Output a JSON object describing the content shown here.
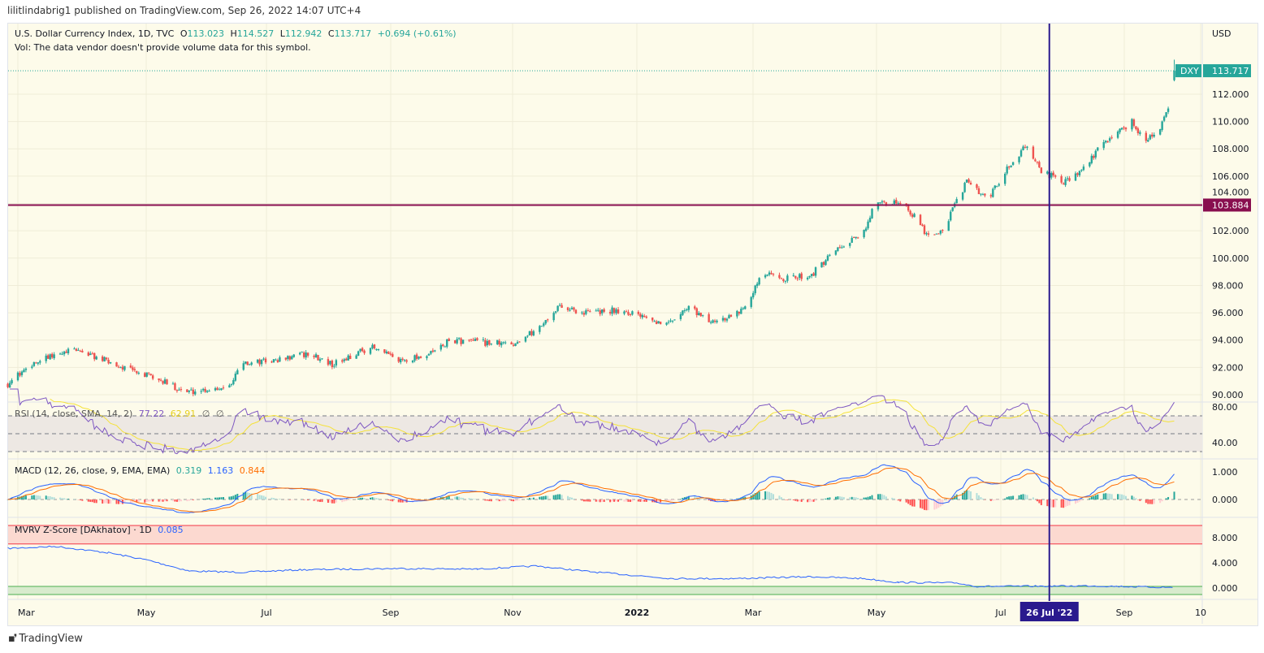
{
  "header": {
    "published": "lilitlindabrig1 published on TradingView.com, Sep 26, 2022 14:07 UTC+4"
  },
  "legend": {
    "symbol": "U.S. Dollar Currency Index, 1D, TVC",
    "o_label": "O",
    "o": "113.023",
    "h_label": "H",
    "h": "114.527",
    "l_label": "L",
    "l": "112.942",
    "c_label": "C",
    "c": "113.717",
    "change": "+0.694 (+0.61%)",
    "vol_note": "Vol: The data vendor doesn't provide volume data for this symbol."
  },
  "rsi_legend": {
    "title": "RSI (14, close, SMA, 14, 2)",
    "rsi": "77.22",
    "sma": "62.91",
    "u1": "∅",
    "u2": "∅"
  },
  "macd_legend": {
    "title": "MACD (12, 26, close, 9, EMA, EMA)",
    "hist": "0.319",
    "macd": "1.163",
    "signal": "0.844"
  },
  "mvrv_legend": {
    "title": "MVRV Z-Score [DAkhatov] · 1D",
    "value": "0.085"
  },
  "price_axis": {
    "currency": "USD",
    "ticks": [
      "90.000",
      "92.000",
      "94.000",
      "96.000",
      "98.000",
      "100.000",
      "102.000",
      "104.000",
      "106.000",
      "108.000",
      "110.000",
      "112.000"
    ],
    "last_symbol": "DXY",
    "last_price": "113.717",
    "hline_price": "103.884"
  },
  "rsi_axis": {
    "ticks": [
      "80.00",
      "40.00"
    ]
  },
  "macd_axis": {
    "ticks": [
      "1.000",
      "0.000"
    ]
  },
  "mvrv_axis": {
    "ticks": [
      "8.000",
      "4.000",
      "0.000"
    ]
  },
  "time_axis": {
    "ticks": [
      "Mar",
      "May",
      "Jul",
      "Sep",
      "Nov",
      "2022",
      "Mar",
      "May",
      "Jul",
      "Sep",
      "10"
    ],
    "cursor_label": "26 Jul '22"
  },
  "footer": {
    "brand": "TradingView"
  },
  "colors": {
    "up": "#26a69a",
    "down": "#ef5350",
    "hline": "#880e4f",
    "cursor": "#2a1a8e",
    "rsi": "#7e57c2",
    "rsi_sma": "#f5e23a",
    "macd": "#2962ff",
    "signal": "#ff6d00",
    "mvrv": "#2962ff"
  },
  "chart_data": [
    {
      "type": "candlestick",
      "title": "U.S. Dollar Currency Index, 1D, TVC",
      "ylim": [
        89.5,
        114.8
      ],
      "grid": true,
      "hline": 103.884,
      "cursor_date": "2022-07-26",
      "approx_close_path": [
        [
          "2021-02-24",
          90.8
        ],
        [
          "2021-03-08",
          92.3
        ],
        [
          "2021-03-30",
          93.3
        ],
        [
          "2021-04-22",
          92.0
        ],
        [
          "2021-05-08",
          91.2
        ],
        [
          "2021-05-24",
          90.2
        ],
        [
          "2021-06-13",
          90.6
        ],
        [
          "2021-06-21",
          92.3
        ],
        [
          "2021-07-07",
          92.5
        ],
        [
          "2021-07-23",
          93.0
        ],
        [
          "2021-08-04",
          92.2
        ],
        [
          "2021-08-23",
          93.5
        ],
        [
          "2021-09-06",
          92.5
        ],
        [
          "2021-09-22",
          93.0
        ],
        [
          "2021-10-02",
          94.0
        ],
        [
          "2021-10-20",
          93.8
        ],
        [
          "2021-11-01",
          93.7
        ],
        [
          "2021-11-13",
          94.7
        ],
        [
          "2021-11-25",
          96.5
        ],
        [
          "2021-12-07",
          96.0
        ],
        [
          "2021-12-24",
          96.2
        ],
        [
          "2022-01-09",
          95.8
        ],
        [
          "2022-01-15",
          95.0
        ],
        [
          "2022-01-29",
          96.5
        ],
        [
          "2022-02-06",
          95.3
        ],
        [
          "2022-02-22",
          96.0
        ],
        [
          "2022-03-06",
          98.8
        ],
        [
          "2022-03-18",
          98.5
        ],
        [
          "2022-03-30",
          98.8
        ],
        [
          "2022-04-11",
          100.5
        ],
        [
          "2022-04-24",
          101.7
        ],
        [
          "2022-04-30",
          103.8
        ],
        [
          "2022-05-14",
          104.2
        ],
        [
          "2022-05-26",
          101.8
        ],
        [
          "2022-06-03",
          102.0
        ],
        [
          "2022-06-11",
          104.5
        ],
        [
          "2022-06-15",
          105.6
        ],
        [
          "2022-06-25",
          104.2
        ],
        [
          "2022-07-05",
          106.5
        ],
        [
          "2022-07-15",
          108.3
        ],
        [
          "2022-07-21",
          106.5
        ],
        [
          "2022-08-02",
          105.5
        ],
        [
          "2022-08-10",
          106.2
        ],
        [
          "2022-08-23",
          108.6
        ],
        [
          "2022-09-05",
          110.0
        ],
        [
          "2022-09-12",
          108.5
        ],
        [
          "2022-09-20",
          109.8
        ],
        [
          "2022-09-24",
          111.2
        ],
        [
          "2022-09-26",
          113.717
        ]
      ]
    },
    {
      "type": "line",
      "title": "RSI (14, close, SMA, 14, 2)",
      "ylim": [
        26,
        82
      ],
      "bands": [
        70,
        50,
        30
      ],
      "last": {
        "rsi": 77.22,
        "sma": 62.91
      }
    },
    {
      "type": "line",
      "title": "MACD (12, 26, close, 9, EMA, EMA)",
      "ylim": [
        -0.6,
        1.45
      ],
      "last": {
        "histogram": 0.319,
        "macd": 1.163,
        "signal": 0.844
      }
    },
    {
      "type": "line",
      "title": "MVRV Z-Score [DAkhatov] · 1D",
      "ylim": [
        -1.2,
        10.5
      ],
      "bands": {
        "red": [
          7,
          10
        ],
        "green": [
          -1,
          0.1
        ]
      },
      "points": [
        [
          "2021-02-24",
          6.3
        ],
        [
          "2021-03-20",
          6.6
        ],
        [
          "2021-04-15",
          5.6
        ],
        [
          "2021-05-05",
          4.4
        ],
        [
          "2021-05-25",
          2.7
        ],
        [
          "2021-06-20",
          2.5
        ],
        [
          "2021-07-20",
          2.9
        ],
        [
          "2021-09-05",
          3.1
        ],
        [
          "2021-10-15",
          3.0
        ],
        [
          "2021-11-13",
          3.5
        ],
        [
          "2021-12-10",
          2.6
        ],
        [
          "2022-01-20",
          1.5
        ],
        [
          "2022-02-20",
          1.5
        ],
        [
          "2022-03-30",
          1.8
        ],
        [
          "2022-04-25",
          1.5
        ],
        [
          "2022-05-12",
          0.9
        ],
        [
          "2022-06-10",
          0.8
        ],
        [
          "2022-06-20",
          0.25
        ],
        [
          "2022-07-26",
          0.3
        ],
        [
          "2022-08-15",
          0.35
        ],
        [
          "2022-09-26",
          0.085
        ]
      ]
    }
  ]
}
